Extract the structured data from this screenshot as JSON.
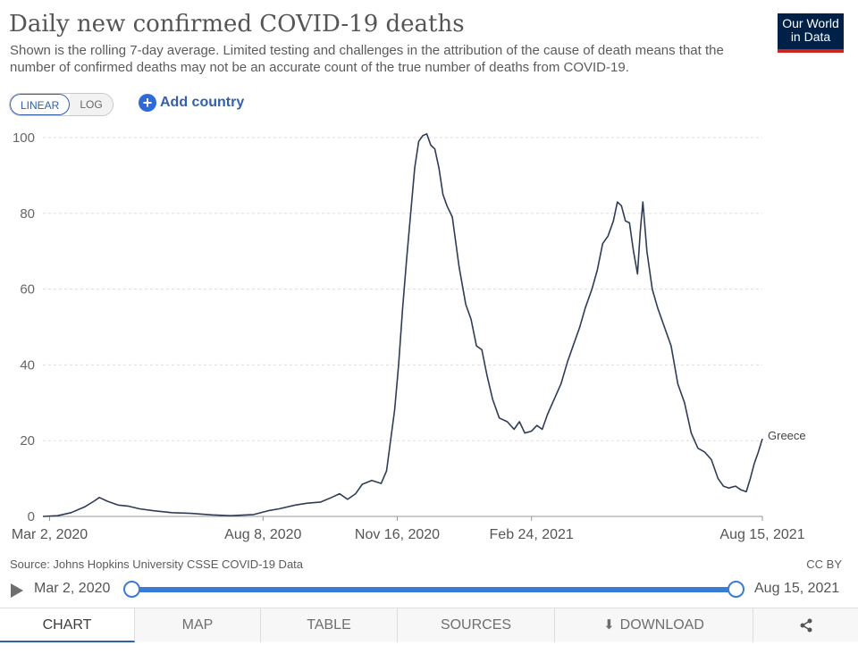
{
  "header": {
    "title": "Daily new confirmed COVID-19 deaths",
    "subtitle": "Shown is the rolling 7-day average. Limited testing and challenges in the attribution of the cause of death means that the number of confirmed deaths may not be an accurate count of the true number of deaths from COVID-19.",
    "logo_line1": "Our World",
    "logo_line2": "in Data"
  },
  "controls": {
    "scale_linear": "LINEAR",
    "scale_log": "LOG",
    "add_country": "Add country",
    "add_icon": "+"
  },
  "footer": {
    "source": "Source: Johns Hopkins University CSSE COVID-19 Data",
    "license": "CC BY"
  },
  "timeline": {
    "start_label": "Mar 2, 2020",
    "end_label": "Aug 15, 2021"
  },
  "tabs": {
    "chart": "CHART",
    "map": "MAP",
    "table": "TABLE",
    "sources": "SOURCES",
    "download": "DOWNLOAD",
    "download_icon": "⬇",
    "share_icon": "share-icon"
  },
  "colors": {
    "line": "#2f3d54",
    "grid": "#dddddd",
    "accent": "#3360a9",
    "logo_bg": "#002147",
    "logo_bar": "#ce261e"
  },
  "chart_data": {
    "type": "line",
    "ylim": [
      0,
      100
    ],
    "yticks": [
      0,
      20,
      40,
      60,
      80,
      100
    ],
    "xlim": [
      "2020-02-26",
      "2021-08-15"
    ],
    "xticks": [
      {
        "date": "2020-03-02",
        "label": "Mar 2, 2020"
      },
      {
        "date": "2020-08-08",
        "label": "Aug 8, 2020"
      },
      {
        "date": "2020-11-16",
        "label": "Nov 16, 2020"
      },
      {
        "date": "2021-02-24",
        "label": "Feb 24, 2021"
      },
      {
        "date": "2021-08-15",
        "label": "Aug 15, 2021"
      }
    ],
    "series": [
      {
        "name": "Greece",
        "color": "#2f3d54",
        "points": [
          [
            "2020-02-26",
            0
          ],
          [
            "2020-03-08",
            0.2
          ],
          [
            "2020-03-18",
            1.0
          ],
          [
            "2020-03-28",
            2.5
          ],
          [
            "2020-04-04",
            4.0
          ],
          [
            "2020-04-08",
            5.0
          ],
          [
            "2020-04-14",
            4.0
          ],
          [
            "2020-04-22",
            3.0
          ],
          [
            "2020-04-30",
            2.7
          ],
          [
            "2020-05-08",
            2.0
          ],
          [
            "2020-05-18",
            1.5
          ],
          [
            "2020-06-01",
            1.0
          ],
          [
            "2020-06-15",
            0.8
          ],
          [
            "2020-07-01",
            0.4
          ],
          [
            "2020-07-15",
            0.2
          ],
          [
            "2020-08-01",
            0.5
          ],
          [
            "2020-08-12",
            1.5
          ],
          [
            "2020-08-20",
            2.0
          ],
          [
            "2020-09-01",
            3.0
          ],
          [
            "2020-09-10",
            3.5
          ],
          [
            "2020-09-20",
            3.8
          ],
          [
            "2020-09-28",
            5.0
          ],
          [
            "2020-10-04",
            6.0
          ],
          [
            "2020-10-10",
            4.5
          ],
          [
            "2020-10-16",
            6.0
          ],
          [
            "2020-10-21",
            8.5
          ],
          [
            "2020-10-28",
            9.5
          ],
          [
            "2020-11-04",
            8.7
          ],
          [
            "2020-11-08",
            12.0
          ],
          [
            "2020-11-11",
            20.0
          ],
          [
            "2020-11-14",
            28.0
          ],
          [
            "2020-11-17",
            40.0
          ],
          [
            "2020-11-20",
            55.0
          ],
          [
            "2020-11-23",
            68.0
          ],
          [
            "2020-11-26",
            80.0
          ],
          [
            "2020-11-29",
            92.0
          ],
          [
            "2020-12-02",
            99.0
          ],
          [
            "2020-12-05",
            100.5
          ],
          [
            "2020-12-08",
            101.0
          ],
          [
            "2020-12-11",
            98.0
          ],
          [
            "2020-12-14",
            97.0
          ],
          [
            "2020-12-17",
            92.0
          ],
          [
            "2020-12-20",
            85.0
          ],
          [
            "2020-12-23",
            82.0
          ],
          [
            "2020-12-27",
            79.0
          ],
          [
            "2021-01-01",
            66.0
          ],
          [
            "2021-01-06",
            56.0
          ],
          [
            "2021-01-10",
            52.0
          ],
          [
            "2021-01-14",
            45.0
          ],
          [
            "2021-01-18",
            44.0
          ],
          [
            "2021-01-22",
            37.0
          ],
          [
            "2021-01-26",
            31.0
          ],
          [
            "2021-01-31",
            26.0
          ],
          [
            "2021-02-06",
            25.0
          ],
          [
            "2021-02-11",
            23.0
          ],
          [
            "2021-02-15",
            25.0
          ],
          [
            "2021-02-19",
            22.0
          ],
          [
            "2021-02-24",
            22.5
          ],
          [
            "2021-02-28",
            24.0
          ],
          [
            "2021-03-04",
            23.0
          ],
          [
            "2021-03-08",
            27.0
          ],
          [
            "2021-03-13",
            31.0
          ],
          [
            "2021-03-18",
            35.0
          ],
          [
            "2021-03-23",
            41.0
          ],
          [
            "2021-03-27",
            45.0
          ],
          [
            "2021-04-01",
            50.0
          ],
          [
            "2021-04-05",
            55.0
          ],
          [
            "2021-04-10",
            60.0
          ],
          [
            "2021-04-14",
            65.0
          ],
          [
            "2021-04-18",
            72.0
          ],
          [
            "2021-04-22",
            74.0
          ],
          [
            "2021-04-26",
            78.0
          ],
          [
            "2021-04-29",
            83.0
          ],
          [
            "2021-05-02",
            82.0
          ],
          [
            "2021-05-05",
            78.0
          ],
          [
            "2021-05-08",
            77.5
          ],
          [
            "2021-05-11",
            70.0
          ],
          [
            "2021-05-14",
            64.0
          ],
          [
            "2021-05-16",
            75.0
          ],
          [
            "2021-05-18",
            83.0
          ],
          [
            "2021-05-21",
            70.0
          ],
          [
            "2021-05-25",
            60.0
          ],
          [
            "2021-05-29",
            55.0
          ],
          [
            "2021-06-03",
            50.0
          ],
          [
            "2021-06-08",
            45.0
          ],
          [
            "2021-06-13",
            35.0
          ],
          [
            "2021-06-18",
            30.0
          ],
          [
            "2021-06-23",
            22.0
          ],
          [
            "2021-06-28",
            18.0
          ],
          [
            "2021-07-03",
            17.0
          ],
          [
            "2021-07-08",
            15.0
          ],
          [
            "2021-07-13",
            10.0
          ],
          [
            "2021-07-17",
            8.0
          ],
          [
            "2021-07-21",
            7.5
          ],
          [
            "2021-07-26",
            8.0
          ],
          [
            "2021-07-30",
            7.0
          ],
          [
            "2021-08-03",
            6.5
          ],
          [
            "2021-08-06",
            10.0
          ],
          [
            "2021-08-09",
            14.0
          ],
          [
            "2021-08-12",
            17.0
          ],
          [
            "2021-08-15",
            20.5
          ]
        ]
      }
    ],
    "end_label": "Greece",
    "grid": true,
    "legend": "inline-end"
  }
}
